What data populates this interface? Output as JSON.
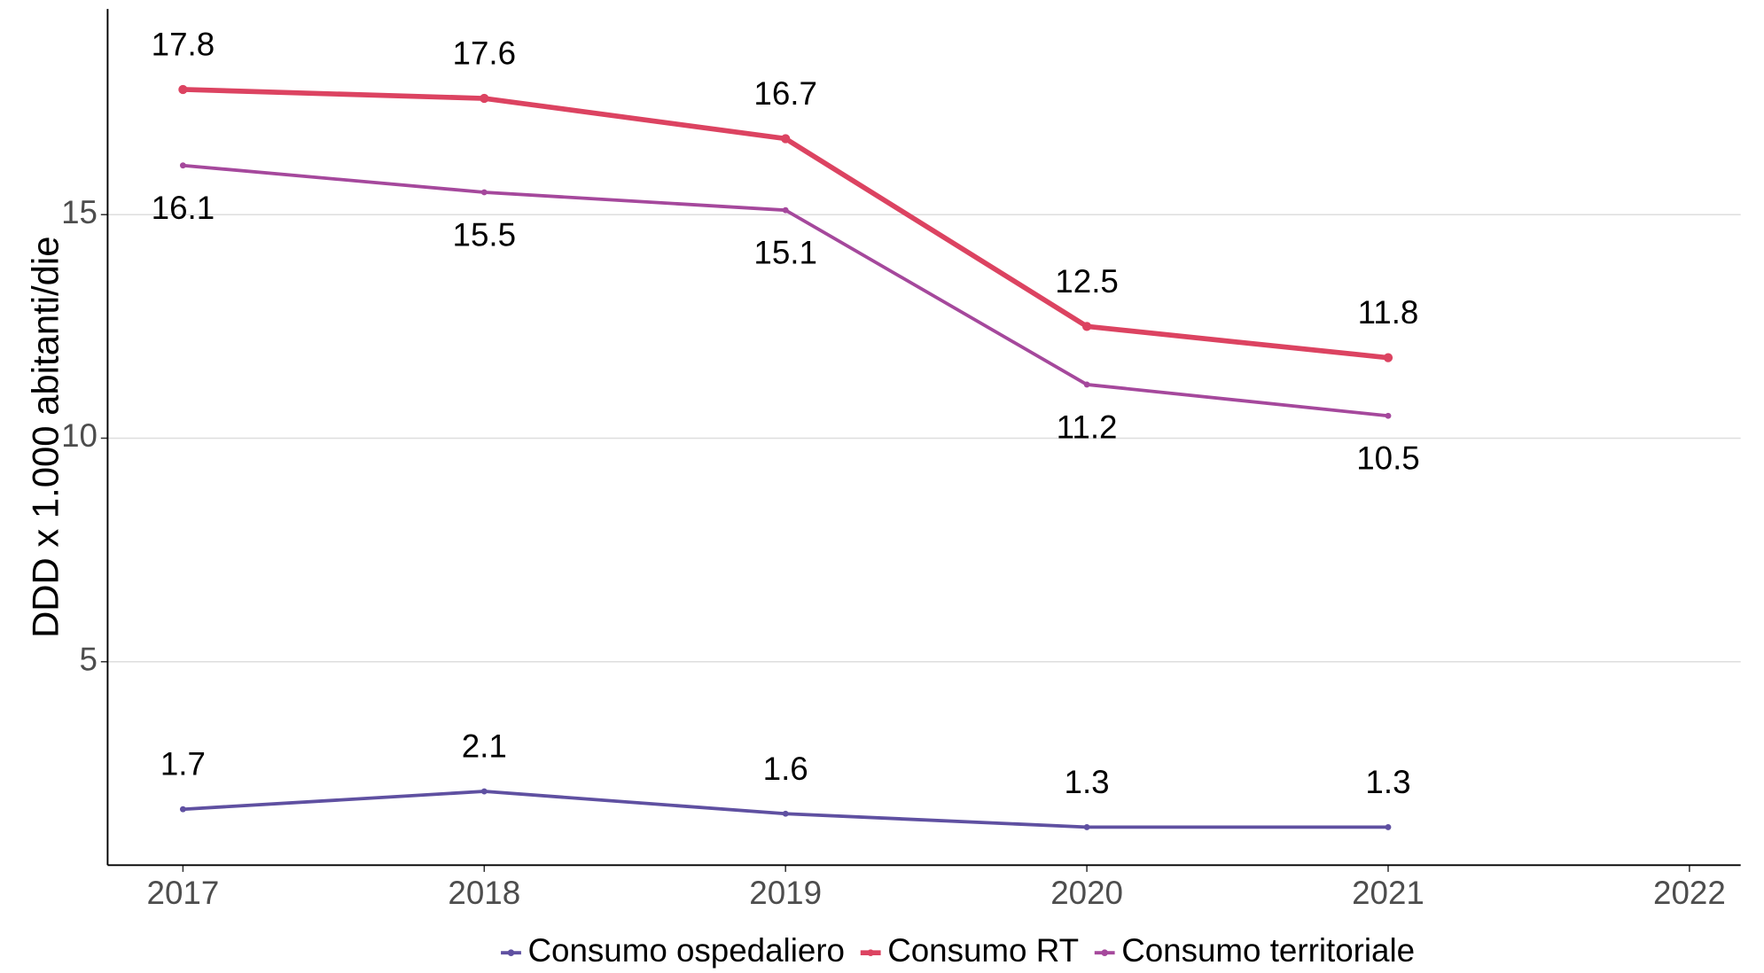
{
  "chart_data": {
    "type": "line",
    "y_label": "DDD x 1.000 abitanti/die",
    "x": [
      2017,
      2018,
      2019,
      2020,
      2021
    ],
    "series": [
      {
        "name": "Consumo ospedaliero",
        "color": "#5f50a1",
        "values": [
          1.7,
          2.1,
          1.6,
          1.3,
          1.3
        ]
      },
      {
        "name": "Consumo RT",
        "color": "#dc4361",
        "values": [
          17.8,
          17.6,
          16.7,
          12.5,
          11.8
        ]
      },
      {
        "name": "Consumo territoriale",
        "color": "#a5489c",
        "values": [
          16.1,
          15.5,
          15.1,
          11.2,
          10.5
        ]
      }
    ],
    "xlim": [
      2016.75,
      2022.17
    ],
    "xticks": [
      2017,
      2018,
      2019,
      2020,
      2021,
      2022
    ],
    "ylim": [
      0.45,
      19.6
    ],
    "yticks": [
      5,
      10,
      15
    ],
    "grid": true,
    "legend": "bottom"
  }
}
